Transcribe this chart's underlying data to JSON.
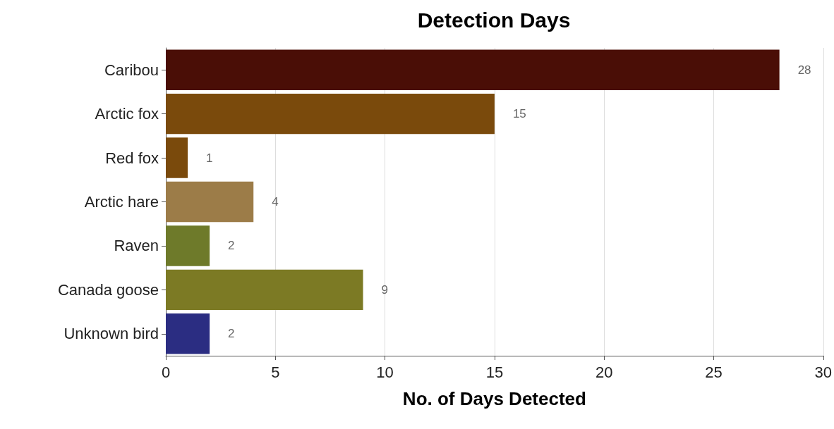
{
  "chart_data": {
    "type": "bar",
    "orientation": "horizontal",
    "title": "Detection Days",
    "xlabel": "No. of Days Detected",
    "categories": [
      "Caribou",
      "Arctic fox",
      "Red fox",
      "Arctic hare",
      "Raven",
      "Canada goose",
      "Unknown bird"
    ],
    "values": [
      28,
      15,
      1,
      4,
      2,
      9,
      2
    ],
    "colors": [
      "#4a0e06",
      "#7a4a0c",
      "#7a4a0c",
      "#9c7c48",
      "#6e7a2a",
      "#7c7a24",
      "#2b2d82"
    ],
    "xlim": [
      0,
      30
    ],
    "xticks": [
      0,
      5,
      10,
      15,
      20,
      25,
      30
    ],
    "grid": "x",
    "data_labels": true
  }
}
